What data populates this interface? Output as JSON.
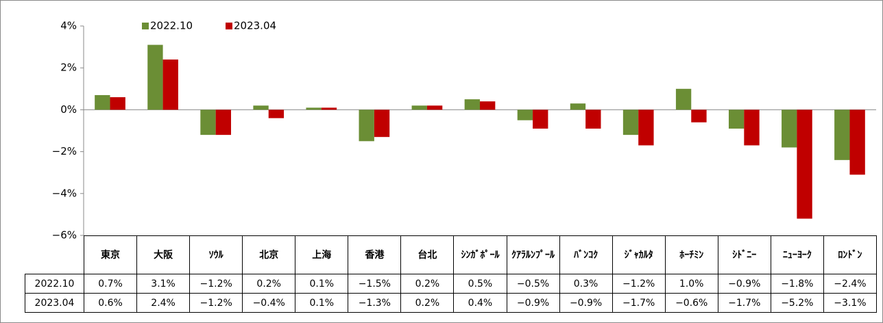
{
  "chart_data": {
    "type": "bar",
    "categories": [
      "東京",
      "大阪",
      "ｿｳﾙ",
      "北京",
      "上海",
      "香港",
      "台北",
      "ｼﾝｶﾞﾎﾟｰﾙ",
      "ｸｱﾗﾙﾝﾌﾟｰﾙ",
      "ﾊﾞﾝｺｸ",
      "ｼﾞｬｶﾙﾀ",
      "ﾎｰﾁﾐﾝ",
      "ｼﾄﾞﾆｰ",
      "ﾆｭｰﾖｰｸ",
      "ﾛﾝﾄﾞﾝ"
    ],
    "series": [
      {
        "name": "2022.10",
        "color": "#6b8e35",
        "values": [
          0.7,
          3.1,
          -1.2,
          0.2,
          0.1,
          -1.5,
          0.2,
          0.5,
          -0.5,
          0.3,
          -1.2,
          1.0,
          -0.9,
          -1.8,
          -2.4
        ],
        "value_labels": [
          "0.7%",
          "3.1%",
          "−1.2%",
          "0.2%",
          "0.1%",
          "−1.5%",
          "0.2%",
          "0.5%",
          "−0.5%",
          "0.3%",
          "−1.2%",
          "1.0%",
          "−0.9%",
          "−1.8%",
          "−2.4%"
        ]
      },
      {
        "name": "2023.04",
        "color": "#c00000",
        "values": [
          0.6,
          2.4,
          -1.2,
          -0.4,
          0.1,
          -1.3,
          0.2,
          0.4,
          -0.9,
          -0.9,
          -1.7,
          -0.6,
          -1.7,
          -5.2,
          -3.1
        ],
        "value_labels": [
          "0.6%",
          "2.4%",
          "−1.2%",
          "−0.4%",
          "0.1%",
          "−1.3%",
          "0.2%",
          "0.4%",
          "−0.9%",
          "−0.9%",
          "−1.7%",
          "−0.6%",
          "−1.7%",
          "−5.2%",
          "−3.1%"
        ]
      }
    ],
    "ylim": [
      -6,
      4
    ],
    "yticks": [
      {
        "value": 4,
        "label": "4%"
      },
      {
        "value": 2,
        "label": "2%"
      },
      {
        "value": 0,
        "label": "0%"
      },
      {
        "value": -2,
        "label": "−2%"
      },
      {
        "value": -4,
        "label": "−4%"
      },
      {
        "value": -6,
        "label": "−6%"
      }
    ],
    "legend": "top-left"
  }
}
